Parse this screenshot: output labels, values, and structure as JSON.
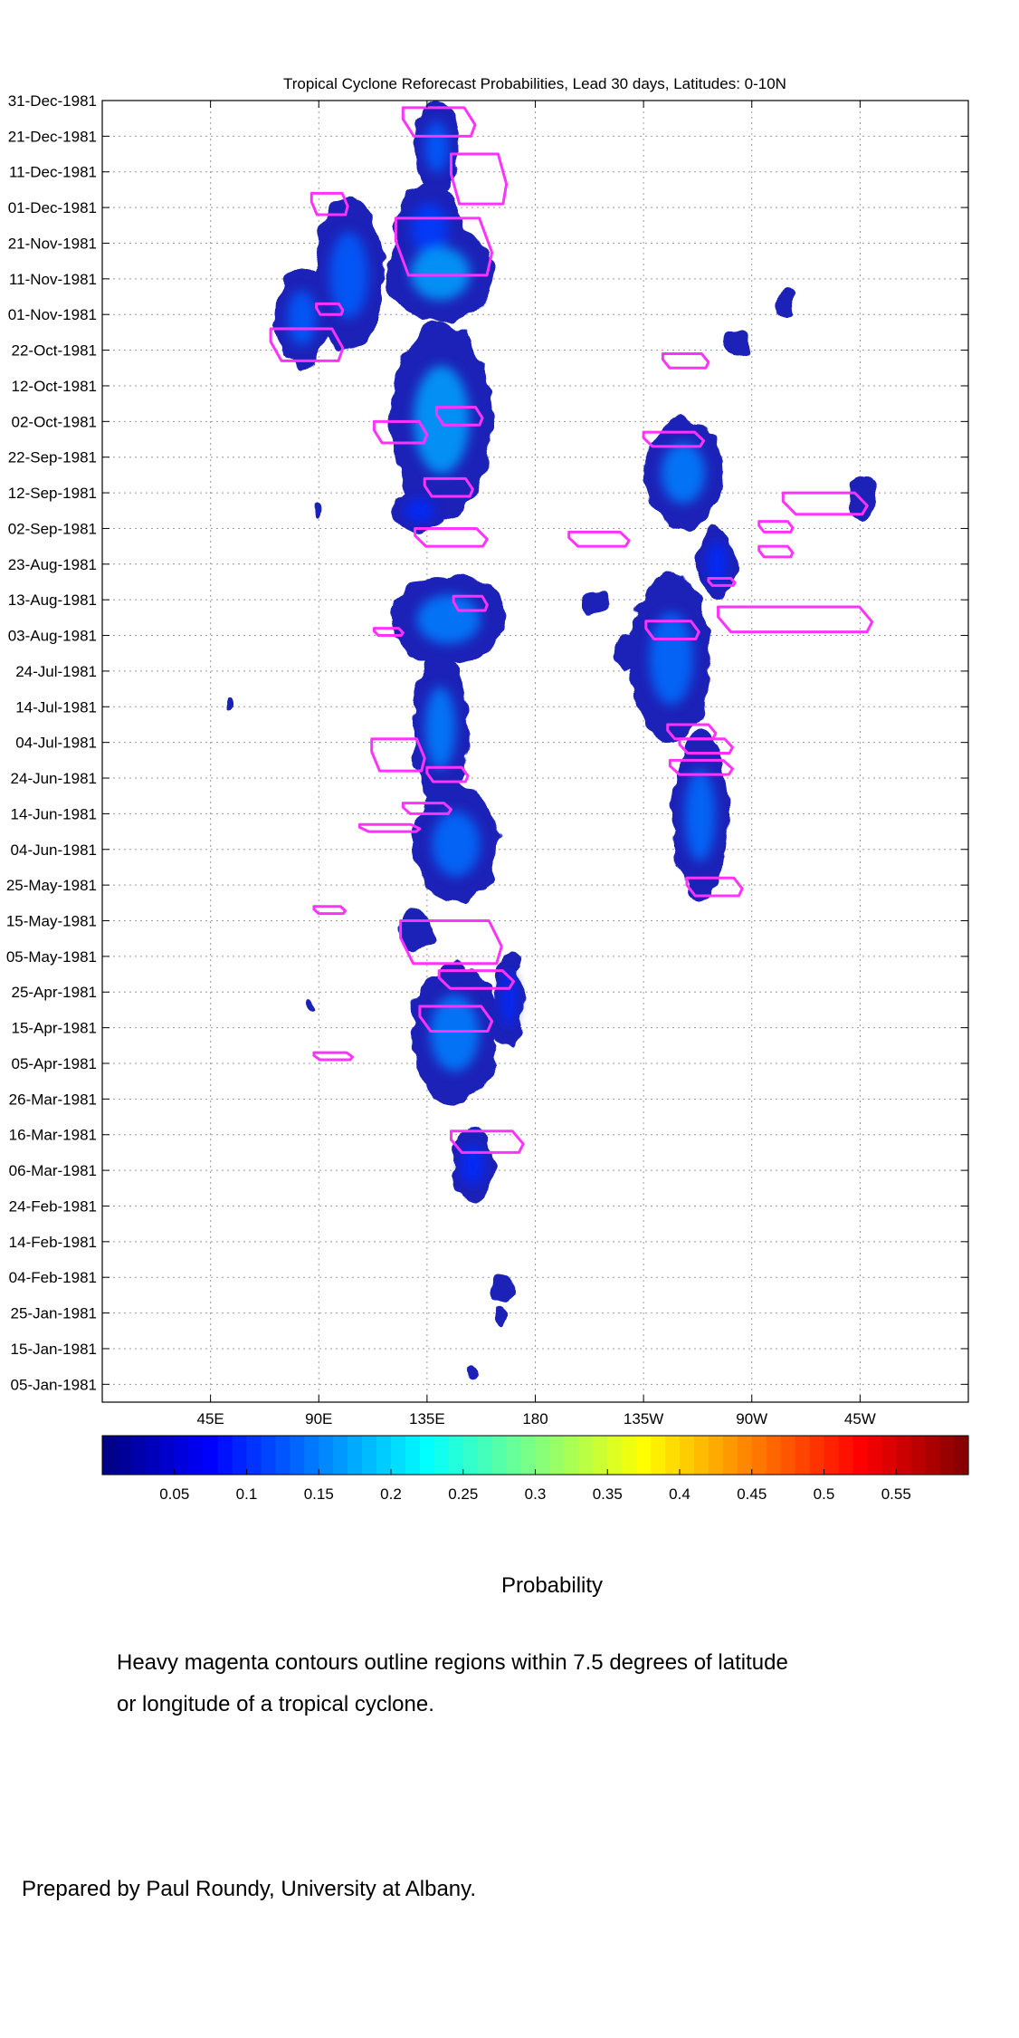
{
  "chart_data": {
    "type": "heatmap",
    "title": "Tropical Cyclone Reforecast Probabilities, Lead 30 days, Latitudes: 0-10N",
    "xlabel": "",
    "ylabel": "",
    "x_ticks": [
      "45E",
      "90E",
      "135E",
      "180",
      "135W",
      "90W",
      "45W"
    ],
    "x_tick_lon": [
      45,
      90,
      135,
      180,
      225,
      270,
      315
    ],
    "xlim_lon": [
      0,
      360
    ],
    "y_ticks": [
      "31-Dec-1981",
      "21-Dec-1981",
      "11-Dec-1981",
      "01-Dec-1981",
      "21-Nov-1981",
      "11-Nov-1981",
      "01-Nov-1981",
      "22-Oct-1981",
      "12-Oct-1981",
      "02-Oct-1981",
      "22-Sep-1981",
      "12-Sep-1981",
      "02-Sep-1981",
      "23-Aug-1981",
      "13-Aug-1981",
      "03-Aug-1981",
      "24-Jul-1981",
      "14-Jul-1981",
      "04-Jul-1981",
      "24-Jun-1981",
      "14-Jun-1981",
      "04-Jun-1981",
      "25-May-1981",
      "15-May-1981",
      "05-May-1981",
      "25-Apr-1981",
      "15-Apr-1981",
      "05-Apr-1981",
      "26-Mar-1981",
      "16-Mar-1981",
      "06-Mar-1981",
      "24-Feb-1981",
      "14-Feb-1981",
      "04-Feb-1981",
      "25-Jan-1981",
      "15-Jan-1981",
      "05-Jan-1981"
    ],
    "ylim": [
      "01-Jan-1981",
      "31-Dec-1981"
    ],
    "grid": true,
    "colorbar": {
      "label": "Probability",
      "ticks": [
        "0.05",
        "0.1",
        "0.15",
        "0.2",
        "0.25",
        "0.3",
        "0.35",
        "0.4",
        "0.45",
        "0.5",
        "0.55"
      ],
      "tick_values": [
        0.05,
        0.1,
        0.15,
        0.2,
        0.25,
        0.3,
        0.35,
        0.4,
        0.45,
        0.5,
        0.55
      ],
      "range": [
        0,
        0.6
      ],
      "colormap": "jet"
    },
    "contour_color": "#ff33ff",
    "low_color": "#1a23b8",
    "mid_color": "#2f7af0",
    "high_color": "#4ab8f0",
    "regions": [
      {
        "lon": [
          130,
          148
        ],
        "day": [
          339,
          365
        ],
        "p": 0.1
      },
      {
        "lon": [
          122,
          150
        ],
        "day": [
          316,
          342
        ],
        "p": 0.08
      },
      {
        "lon": [
          88,
          117
        ],
        "day": [
          294,
          338
        ],
        "p": 0.1
      },
      {
        "lon": [
          72,
          94
        ],
        "day": [
          290,
          318
        ],
        "p": 0.1
      },
      {
        "lon": [
          118,
          163
        ],
        "day": [
          303,
          330
        ],
        "p": 0.14
      },
      {
        "lon": [
          120,
          162
        ],
        "day": [
          248,
          303
        ],
        "p": 0.14
      },
      {
        "lon": [
          121,
          143
        ],
        "day": [
          244,
          256
        ],
        "p": 0.07
      },
      {
        "lon": [
          225,
          258
        ],
        "day": [
          245,
          276
        ],
        "p": 0.12
      },
      {
        "lon": [
          258,
          270
        ],
        "day": [
          294,
          300
        ],
        "p": 0.05
      },
      {
        "lon": [
          280,
          288
        ],
        "day": [
          305,
          312
        ],
        "p": 0.05
      },
      {
        "lon": [
          310,
          322
        ],
        "day": [
          247,
          260
        ],
        "p": 0.06
      },
      {
        "lon": [
          248,
          263
        ],
        "day": [
          225,
          246
        ],
        "p": 0.07
      },
      {
        "lon": [
          120,
          168
        ],
        "day": [
          207,
          232
        ],
        "p": 0.12
      },
      {
        "lon": [
          220,
          253
        ],
        "day": [
          185,
          232
        ],
        "p": 0.11
      },
      {
        "lon": [
          129,
          152
        ],
        "day": [
          168,
          210
        ],
        "p": 0.12
      },
      {
        "lon": [
          129,
          165
        ],
        "day": [
          140,
          173
        ],
        "p": 0.11
      },
      {
        "lon": [
          237,
          260
        ],
        "day": [
          141,
          188
        ],
        "p": 0.11
      },
      {
        "lon": [
          199,
          211
        ],
        "day": [
          221,
          228
        ],
        "p": 0.05
      },
      {
        "lon": [
          213,
          224
        ],
        "day": [
          205,
          215
        ],
        "p": 0.05
      },
      {
        "lon": [
          88,
          91
        ],
        "day": [
          248,
          252
        ],
        "p": 0.04
      },
      {
        "lon": [
          51,
          54
        ],
        "day": [
          193,
          197
        ],
        "p": 0.04
      },
      {
        "lon": [
          128,
          165
        ],
        "day": [
          84,
          123
        ],
        "p": 0.12
      },
      {
        "lon": [
          163,
          175
        ],
        "day": [
          99,
          127
        ],
        "p": 0.07
      },
      {
        "lon": [
          123,
          138
        ],
        "day": [
          127,
          138
        ],
        "p": 0.05
      },
      {
        "lon": [
          85,
          88
        ],
        "day": [
          109,
          113
        ],
        "p": 0.04
      },
      {
        "lon": [
          145,
          163
        ],
        "day": [
          56,
          77
        ],
        "p": 0.07
      },
      {
        "lon": [
          163,
          172
        ],
        "day": [
          29,
          36
        ],
        "p": 0.05
      },
      {
        "lon": [
          163,
          168
        ],
        "day": [
          21,
          27
        ],
        "p": 0.04
      },
      {
        "lon": [
          151,
          155
        ],
        "day": [
          6,
          10
        ],
        "p": 0.04
      }
    ],
    "contours": [
      {
        "lon": [
          125,
          155
        ],
        "day": [
          355,
          363
        ]
      },
      {
        "lon": [
          145,
          168
        ],
        "day": [
          336,
          350
        ]
      },
      {
        "lon": [
          87,
          102
        ],
        "day": [
          333,
          339
        ]
      },
      {
        "lon": [
          89,
          100
        ],
        "day": [
          305,
          308
        ]
      },
      {
        "lon": [
          122,
          162
        ],
        "day": [
          316,
          332
        ]
      },
      {
        "lon": [
          70,
          100
        ],
        "day": [
          292,
          301
        ]
      },
      {
        "lon": [
          233,
          252
        ],
        "day": [
          290,
          294
        ]
      },
      {
        "lon": [
          113,
          135
        ],
        "day": [
          269,
          275
        ]
      },
      {
        "lon": [
          139,
          158
        ],
        "day": [
          274,
          279
        ]
      },
      {
        "lon": [
          134,
          154
        ],
        "day": [
          254,
          259
        ]
      },
      {
        "lon": [
          225,
          250
        ],
        "day": [
          268,
          272
        ]
      },
      {
        "lon": [
          130,
          160
        ],
        "day": [
          240,
          245
        ]
      },
      {
        "lon": [
          194,
          219
        ],
        "day": [
          240,
          244
        ]
      },
      {
        "lon": [
          283,
          318
        ],
        "day": [
          249,
          255
        ]
      },
      {
        "lon": [
          273,
          287
        ],
        "day": [
          244,
          247
        ]
      },
      {
        "lon": [
          273,
          287
        ],
        "day": [
          237,
          240
        ]
      },
      {
        "lon": [
          146,
          160
        ],
        "day": [
          222,
          226
        ]
      },
      {
        "lon": [
          252,
          263
        ],
        "day": [
          229,
          231
        ]
      },
      {
        "lon": [
          256,
          320
        ],
        "day": [
          216,
          223
        ]
      },
      {
        "lon": [
          226,
          248
        ],
        "day": [
          214,
          219
        ]
      },
      {
        "lon": [
          113,
          125
        ],
        "day": [
          215,
          217
        ]
      },
      {
        "lon": [
          235,
          255
        ],
        "day": [
          186,
          190
        ]
      },
      {
        "lon": [
          240,
          262
        ],
        "day": [
          182,
          186
        ]
      },
      {
        "lon": [
          236,
          262
        ],
        "day": [
          176,
          180
        ]
      },
      {
        "lon": [
          112,
          134
        ],
        "day": [
          177,
          186
        ]
      },
      {
        "lon": [
          135,
          152
        ],
        "day": [
          174,
          178
        ]
      },
      {
        "lon": [
          125,
          145
        ],
        "day": [
          165,
          168
        ]
      },
      {
        "lon": [
          107,
          132
        ],
        "day": [
          160,
          162
        ]
      },
      {
        "lon": [
          243,
          266
        ],
        "day": [
          142,
          147
        ]
      },
      {
        "lon": [
          88,
          101
        ],
        "day": [
          137,
          139
        ]
      },
      {
        "lon": [
          124,
          166
        ],
        "day": [
          123,
          135
        ]
      },
      {
        "lon": [
          140,
          171
        ],
        "day": [
          116,
          121
        ]
      },
      {
        "lon": [
          132,
          162
        ],
        "day": [
          104,
          111
        ]
      },
      {
        "lon": [
          88,
          104
        ],
        "day": [
          96,
          98
        ]
      },
      {
        "lon": [
          145,
          175
        ],
        "day": [
          70,
          76
        ]
      }
    ]
  },
  "annotations": {
    "colorbar_title": "Probability",
    "note_line1": "Heavy magenta contours outline regions within 7.5 degrees of latitude",
    "note_line2": "or longitude of a tropical cyclone.",
    "credit": "Prepared by Paul Roundy, University at Albany."
  }
}
